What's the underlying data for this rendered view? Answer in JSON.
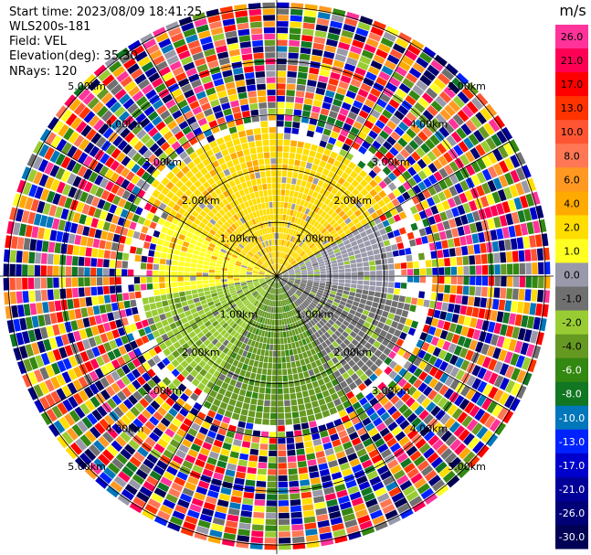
{
  "header": {
    "start_time": "Start time: 2023/08/09 18:41:25",
    "instrument": "WLS200s-181",
    "field": "Field: VEL",
    "elevation": "Elevation(deg): 35.30",
    "nrays": "NRays: 120"
  },
  "chart_data": {
    "type": "heatmap",
    "projection": "polar-ppi",
    "field": "VEL",
    "nrays": 120,
    "range_rings_km": [
      1.0,
      2.0,
      3.0,
      4.0,
      5.0
    ],
    "max_range_km": 5.1,
    "ring_labels": [
      "1.00km",
      "2.00km",
      "3.00km",
      "4.00km",
      "5.00km"
    ],
    "colorbar": {
      "unit": "m/s",
      "tick_labels": [
        "26.0",
        "21.0",
        "17.0",
        "13.0",
        "10.0",
        "8.0",
        "6.0",
        "4.0",
        "2.0",
        "1.0",
        "0.0",
        "-1.0",
        "-2.0",
        "-4.0",
        "-6.0",
        "-8.0",
        "-10.0",
        "-13.0",
        "-17.0",
        "-21.0",
        "-26.0",
        "-30.0"
      ],
      "colors": [
        "#ff3399",
        "#ff0055",
        "#ff0000",
        "#ff3300",
        "#ff5533",
        "#ff7755",
        "#ff9922",
        "#ffaa00",
        "#ffdd00",
        "#ffff22",
        "#9999aa",
        "#707070",
        "#99cc33",
        "#669922",
        "#338811",
        "#117722",
        "#0077bb",
        "#0022ff",
        "#0000cc",
        "#000099",
        "#000077",
        "#000055"
      ]
    },
    "sectors": [
      {
        "azimuth_from": 300,
        "azimuth_to": 360,
        "inner_km": 0.0,
        "outer_km": 2.8,
        "velocity": 2.0
      },
      {
        "azimuth_from": 0,
        "azimuth_to": 60,
        "inner_km": 0.0,
        "outer_km": 2.6,
        "velocity": 2.0
      },
      {
        "azimuth_from": 260,
        "azimuth_to": 300,
        "inner_km": 0.0,
        "outer_km": 2.3,
        "velocity": 1.0
      },
      {
        "azimuth_from": 60,
        "azimuth_to": 100,
        "inner_km": 0.0,
        "outer_km": 2.2,
        "velocity": -0.5
      },
      {
        "azimuth_from": 100,
        "azimuth_to": 150,
        "inner_km": 0.0,
        "outer_km": 2.6,
        "velocity": -1.0
      },
      {
        "azimuth_from": 150,
        "azimuth_to": 210,
        "inner_km": 0.0,
        "outer_km": 2.8,
        "velocity": -4.0
      },
      {
        "azimuth_from": 210,
        "azimuth_to": 260,
        "inner_km": 0.0,
        "outer_km": 2.5,
        "velocity": -2.0
      }
    ],
    "noise_from_km": 2.6
  }
}
